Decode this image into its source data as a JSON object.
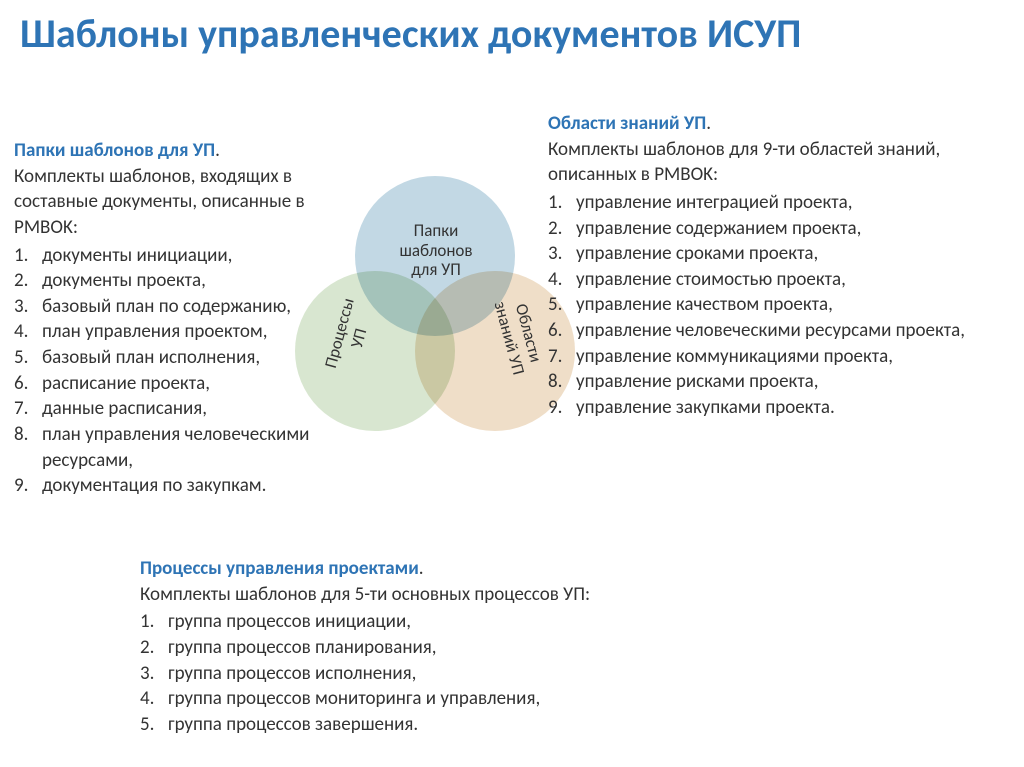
{
  "colors": {
    "title": "#2e74b5",
    "heading": "#2e74b5",
    "body_text": "#333333",
    "circle_top_fill": "#a8c8d8",
    "circle_left_fill": "#c8dcbc",
    "circle_right_fill": "#e8d0b0"
  },
  "title": "Шаблоны управленческих документов ИСУП",
  "left": {
    "heading": "Папки шаблонов для УП",
    "intro": "Комплекты шаблонов, входящих в составные документы, описанные в PMBOK:",
    "items": [
      "документы инициации,",
      "документы проекта,",
      "базовый план по содержанию,",
      "план управления проектом,",
      "базовый план исполнения,",
      "расписание проекта,",
      "данные расписания,",
      "план управления человеческими ресурсами,",
      "документация по закупкам."
    ]
  },
  "right": {
    "heading": "Области знаний УП",
    "intro": "Комплекты шаблонов для 9-ти областей знаний, описанных в PMBOK:",
    "items": [
      "управление интеграцией проекта,",
      "управление содержанием проекта,",
      "управление сроками проекта,",
      "управление стоимостью проекта,",
      "управление качеством проекта,",
      "управление человеческими ресурсами проекта,",
      "управление коммуникациями проекта,",
      "управление рисками проекта,",
      "управление закупками проекта."
    ]
  },
  "bottom": {
    "heading": "Процессы управления проектами",
    "intro": "Комплекты шаблонов для 5-ти основных процессов УП:",
    "items": [
      "группа процессов инициации,",
      "группа процессов планирования,",
      "группа процессов исполнения,",
      "группа процессов мониторинга и управления,",
      "группа процессов завершения."
    ]
  },
  "venn": {
    "top_label": "Папки шаблонов для УП",
    "left_label": "Процессы УП",
    "right_label": "Области знаний УП"
  }
}
